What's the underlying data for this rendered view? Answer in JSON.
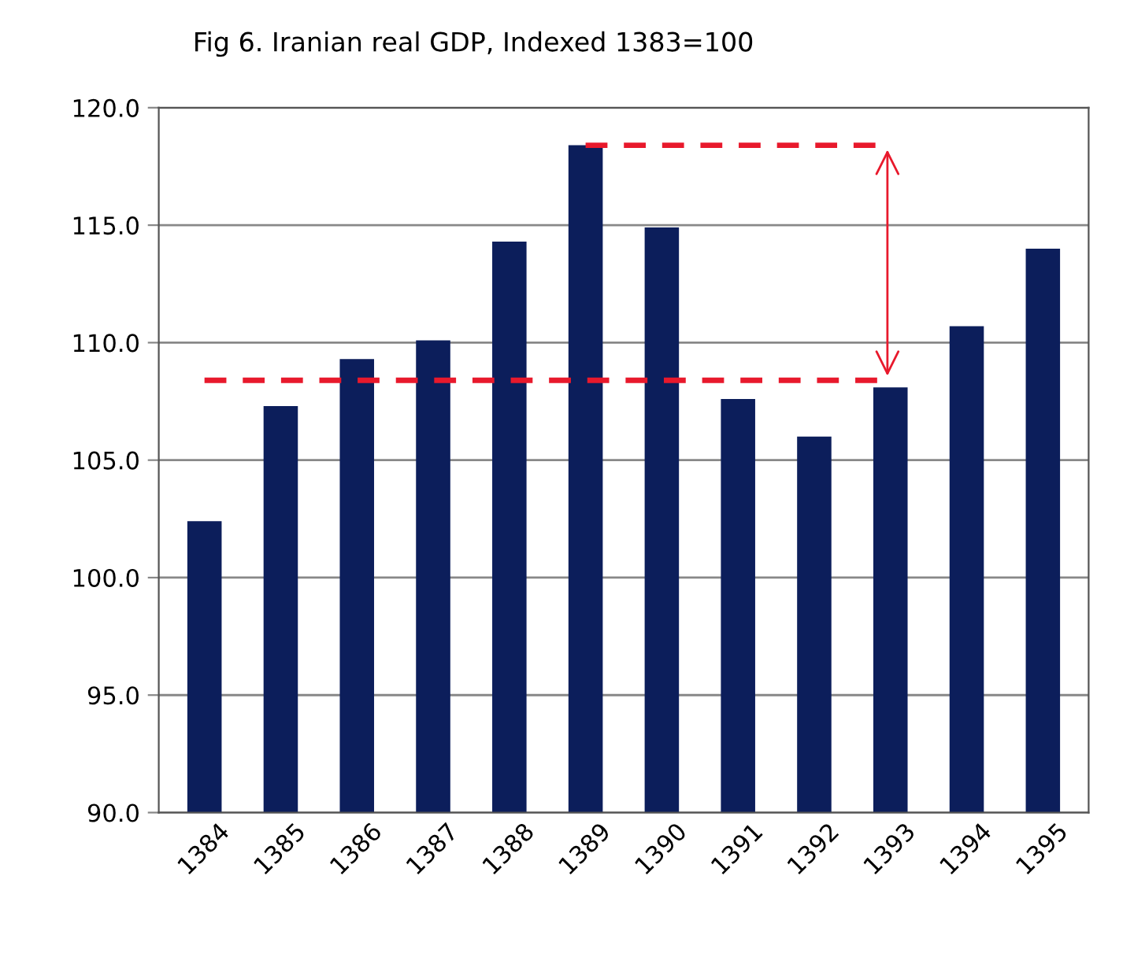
{
  "chart_data": {
    "type": "bar",
    "title": "Fig 6. Iranian real GDP, Indexed 1383=100",
    "categories": [
      "1384",
      "1385",
      "1386",
      "1387",
      "1388",
      "1389",
      "1390",
      "1391",
      "1392",
      "1393",
      "1394",
      "1395"
    ],
    "series": [
      {
        "color": "#0c1e5b",
        "values": [
          102.4,
          107.3,
          109.3,
          110.1,
          114.3,
          118.4,
          114.9,
          107.6,
          106.0,
          108.1,
          110.7,
          114.0
        ]
      },
      {
        "type": "line",
        "color": "#e8192c",
        "line_style": "dashed",
        "values": [
          108.4,
          108.4,
          108.4,
          108.4,
          108.4,
          108.4,
          108.4,
          108.4,
          108.4,
          108.4,
          null,
          null
        ]
      },
      {
        "type": "line",
        "color": "#e8192c",
        "line_style": "dashed",
        "values": [
          null,
          null,
          null,
          null,
          null,
          118.4,
          118.4,
          118.4,
          118.4,
          118.4,
          null,
          null
        ]
      }
    ],
    "ylim": [
      90,
      120
    ],
    "yticks": [
      {
        "value": 90,
        "label": "90.0"
      },
      {
        "value": 95,
        "label": "95.0"
      },
      {
        "value": 100,
        "label": "100.0"
      },
      {
        "value": 105,
        "label": "105.0"
      },
      {
        "value": 110,
        "label": "110.0"
      },
      {
        "value": 115,
        "label": "115.0"
      },
      {
        "value": 120,
        "label": "120.0"
      }
    ],
    "grid": "y"
  }
}
